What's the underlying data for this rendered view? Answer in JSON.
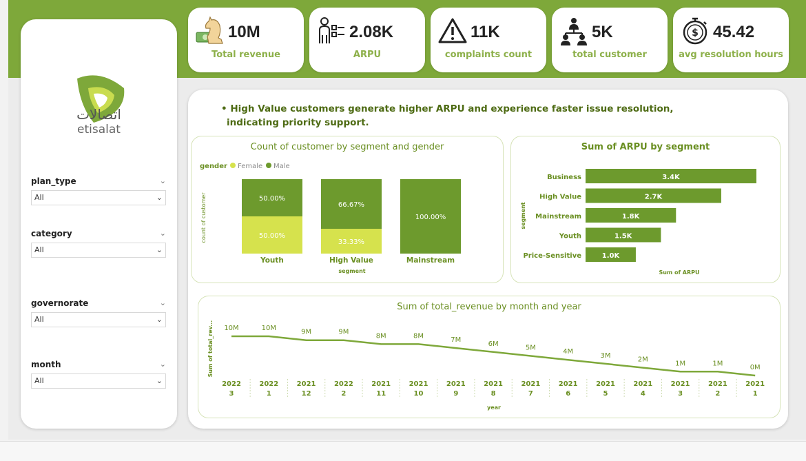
{
  "brand": {
    "name_ar": "اتصالات",
    "name_en": "etisalat",
    "colors": {
      "primary": "#7ea83a",
      "light": "#c9dc4f",
      "dark": "#6d9a2d"
    }
  },
  "filters": [
    {
      "label": "plan_type",
      "value": "All"
    },
    {
      "label": "category",
      "value": "All"
    },
    {
      "label": "governorate",
      "value": "All"
    },
    {
      "label": "month",
      "value": "All"
    }
  ],
  "kpis": [
    {
      "icon": "knight-money-icon",
      "value": "10M",
      "label": "Total revenue"
    },
    {
      "icon": "person-checklist-icon",
      "value": "2.08K",
      "label": "ARPU"
    },
    {
      "icon": "warning-triangle-icon",
      "value": "11K",
      "label": "complaints count"
    },
    {
      "icon": "org-hierarchy-icon",
      "value": "5K",
      "label": "total customer"
    },
    {
      "icon": "money-clock-icon",
      "value": "45.42",
      "label": "avg resolution hours"
    }
  ],
  "insight": {
    "bullet": "•",
    "line1": "High Value customers generate higher ARPU and experience faster issue resolution,",
    "line2": "indicating priority support."
  },
  "chart_data": [
    {
      "type": "bar",
      "stacked": true,
      "percent": true,
      "title": "Count of customer by segment and gender",
      "xlabel": "segment",
      "ylabel": "count of customer",
      "legend_title": "gender",
      "legend_position": "top-left",
      "categories": [
        "Youth",
        "High Value",
        "Mainstream"
      ],
      "series": [
        {
          "name": "Female",
          "color": "#d6e24d",
          "values": [
            50.0,
            33.33,
            0
          ],
          "labels": [
            "50.00%",
            "33.33%",
            ""
          ]
        },
        {
          "name": "Male",
          "color": "#6d9a2d",
          "values": [
            50.0,
            66.67,
            100.0
          ],
          "labels": [
            "50.00%",
            "66.67%",
            "100.00%"
          ]
        }
      ]
    },
    {
      "type": "bar",
      "orientation": "horizontal",
      "title": "Sum of ARPU by segment",
      "xlabel": "Sum of ARPU",
      "ylabel": "segment",
      "categories": [
        "Business",
        "High Value",
        "Mainstream",
        "Youth",
        "Price-Sensitive"
      ],
      "values": [
        3400,
        2700,
        1800,
        1500,
        1000
      ],
      "labels": [
        "3.4K",
        "2.7K",
        "1.8K",
        "1.5K",
        "1.0K"
      ],
      "xlim": [
        0,
        3400
      ]
    },
    {
      "type": "line",
      "title": "Sum of total_revenue by month and year",
      "xlabel": "year",
      "ylabel": "Sum of total_rev...",
      "x": [
        {
          "year": "2022",
          "month": "3"
        },
        {
          "year": "2022",
          "month": "1"
        },
        {
          "year": "2021",
          "month": "12"
        },
        {
          "year": "2022",
          "month": "2"
        },
        {
          "year": "2021",
          "month": "11"
        },
        {
          "year": "2021",
          "month": "10"
        },
        {
          "year": "2021",
          "month": "9"
        },
        {
          "year": "2021",
          "month": "8"
        },
        {
          "year": "2021",
          "month": "7"
        },
        {
          "year": "2021",
          "month": "6"
        },
        {
          "year": "2021",
          "month": "5"
        },
        {
          "year": "2021",
          "month": "4"
        },
        {
          "year": "2021",
          "month": "3"
        },
        {
          "year": "2021",
          "month": "2"
        },
        {
          "year": "2021",
          "month": "1"
        }
      ],
      "values": [
        10,
        10,
        9,
        9,
        8,
        8,
        7,
        6,
        5,
        4,
        3,
        2,
        1,
        1,
        0
      ],
      "labels": [
        "10M",
        "10M",
        "9M",
        "9M",
        "8M",
        "8M",
        "7M",
        "6M",
        "5M",
        "4M",
        "3M",
        "2M",
        "1M",
        "1M",
        "0M"
      ],
      "unit": "M"
    }
  ]
}
